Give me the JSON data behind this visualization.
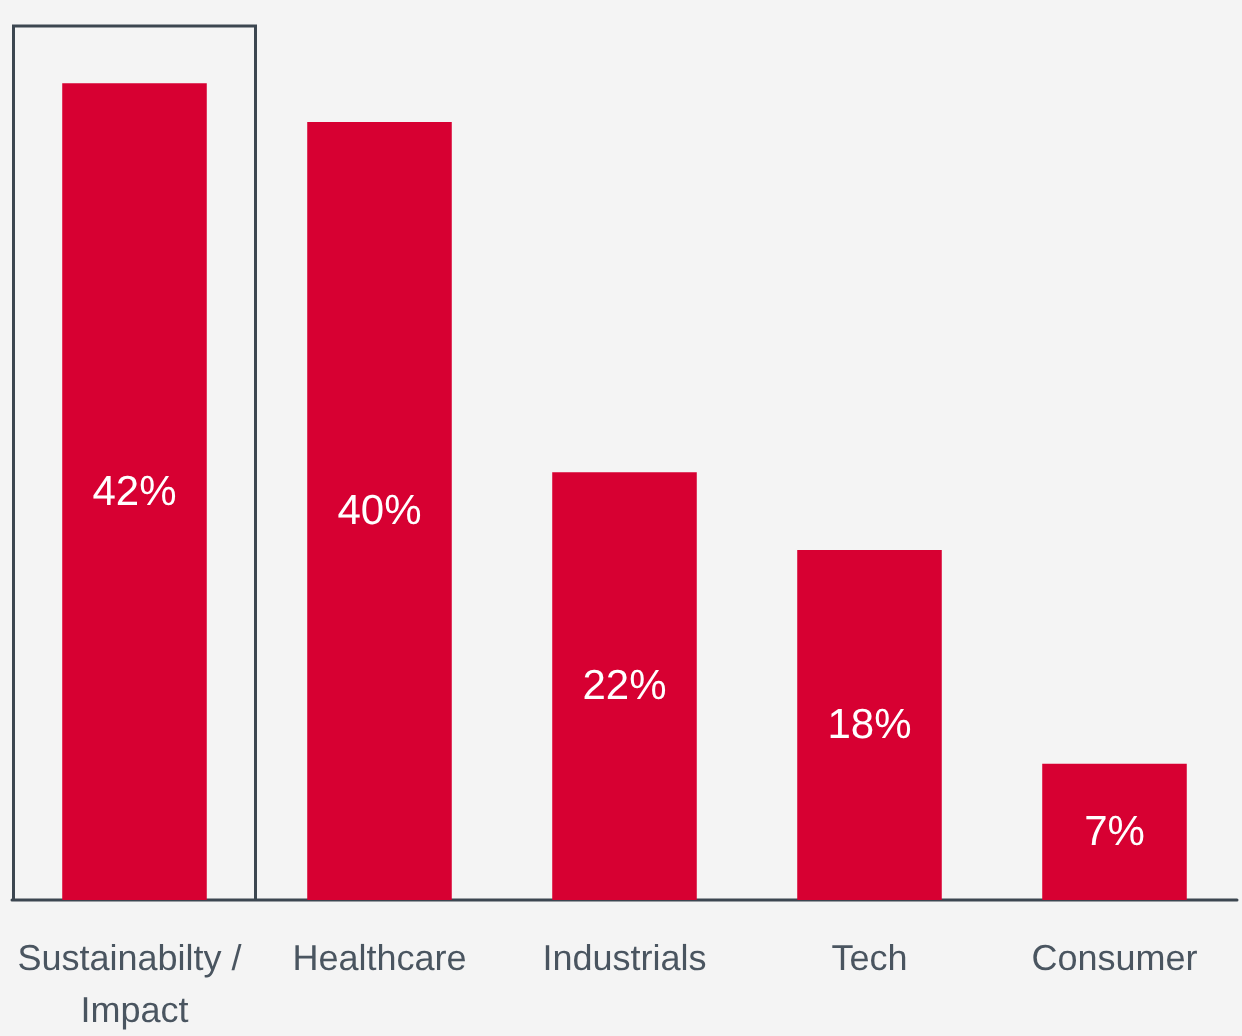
{
  "chart_data": {
    "type": "bar",
    "categories": [
      "Sustainabilty / Impact",
      "Healthcare",
      "Industrials",
      "Tech",
      "Consumer"
    ],
    "values": [
      42,
      40,
      22,
      18,
      7
    ],
    "color": "#d70032",
    "value_labels": [
      "42%",
      "40%",
      "22%",
      "18%",
      "7%"
    ]
  }
}
